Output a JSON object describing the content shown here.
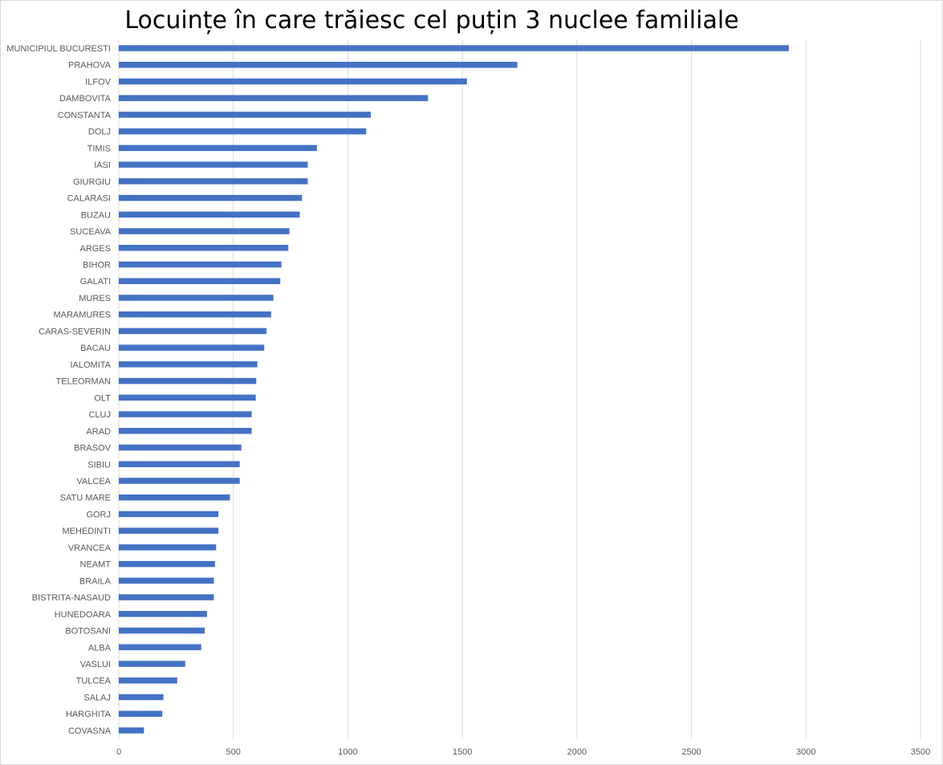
{
  "chart_data": {
    "type": "bar",
    "orientation": "horizontal",
    "title": "Locuințe în care trăiesc cel puțin 3 nuclee familiale",
    "xlabel": "",
    "ylabel": "",
    "xlim": [
      0,
      3500
    ],
    "x_ticks": [
      0,
      500,
      1000,
      1500,
      2000,
      2500,
      3000,
      3500
    ],
    "grid": true,
    "legend": "none",
    "bar_color": "#4472c4",
    "categories": [
      "MUNICIPIUL BUCURESTI",
      "PRAHOVA",
      "ILFOV",
      "DAMBOVITA",
      "CONSTANTA",
      "DOLJ",
      "TIMIS",
      "IASI",
      "GIURGIU",
      "CALARASI",
      "BUZAU",
      "SUCEAVA",
      "ARGES",
      "BIHOR",
      "GALATI",
      "MURES",
      "MARAMURES",
      "CARAS-SEVERIN",
      "BACAU",
      "IALOMITA",
      "TELEORMAN",
      "OLT",
      "CLUJ",
      "ARAD",
      "BRASOV",
      "SIBIU",
      "VALCEA",
      "SATU MARE",
      "GORJ",
      "MEHEDINTI",
      "VRANCEA",
      "NEAMT",
      "BRAILA",
      "BISTRITA-NASAUD",
      "HUNEDOARA",
      "BOTOSANI",
      "ALBA",
      "VASLUI",
      "TULCEA",
      "SALAJ",
      "HARGHITA",
      "COVASNA"
    ],
    "values": [
      2925,
      1740,
      1520,
      1350,
      1100,
      1080,
      865,
      825,
      825,
      800,
      790,
      745,
      740,
      710,
      705,
      675,
      665,
      645,
      635,
      605,
      600,
      598,
      580,
      580,
      535,
      528,
      528,
      485,
      435,
      435,
      425,
      420,
      415,
      415,
      385,
      375,
      360,
      290,
      255,
      195,
      190,
      110
    ]
  }
}
